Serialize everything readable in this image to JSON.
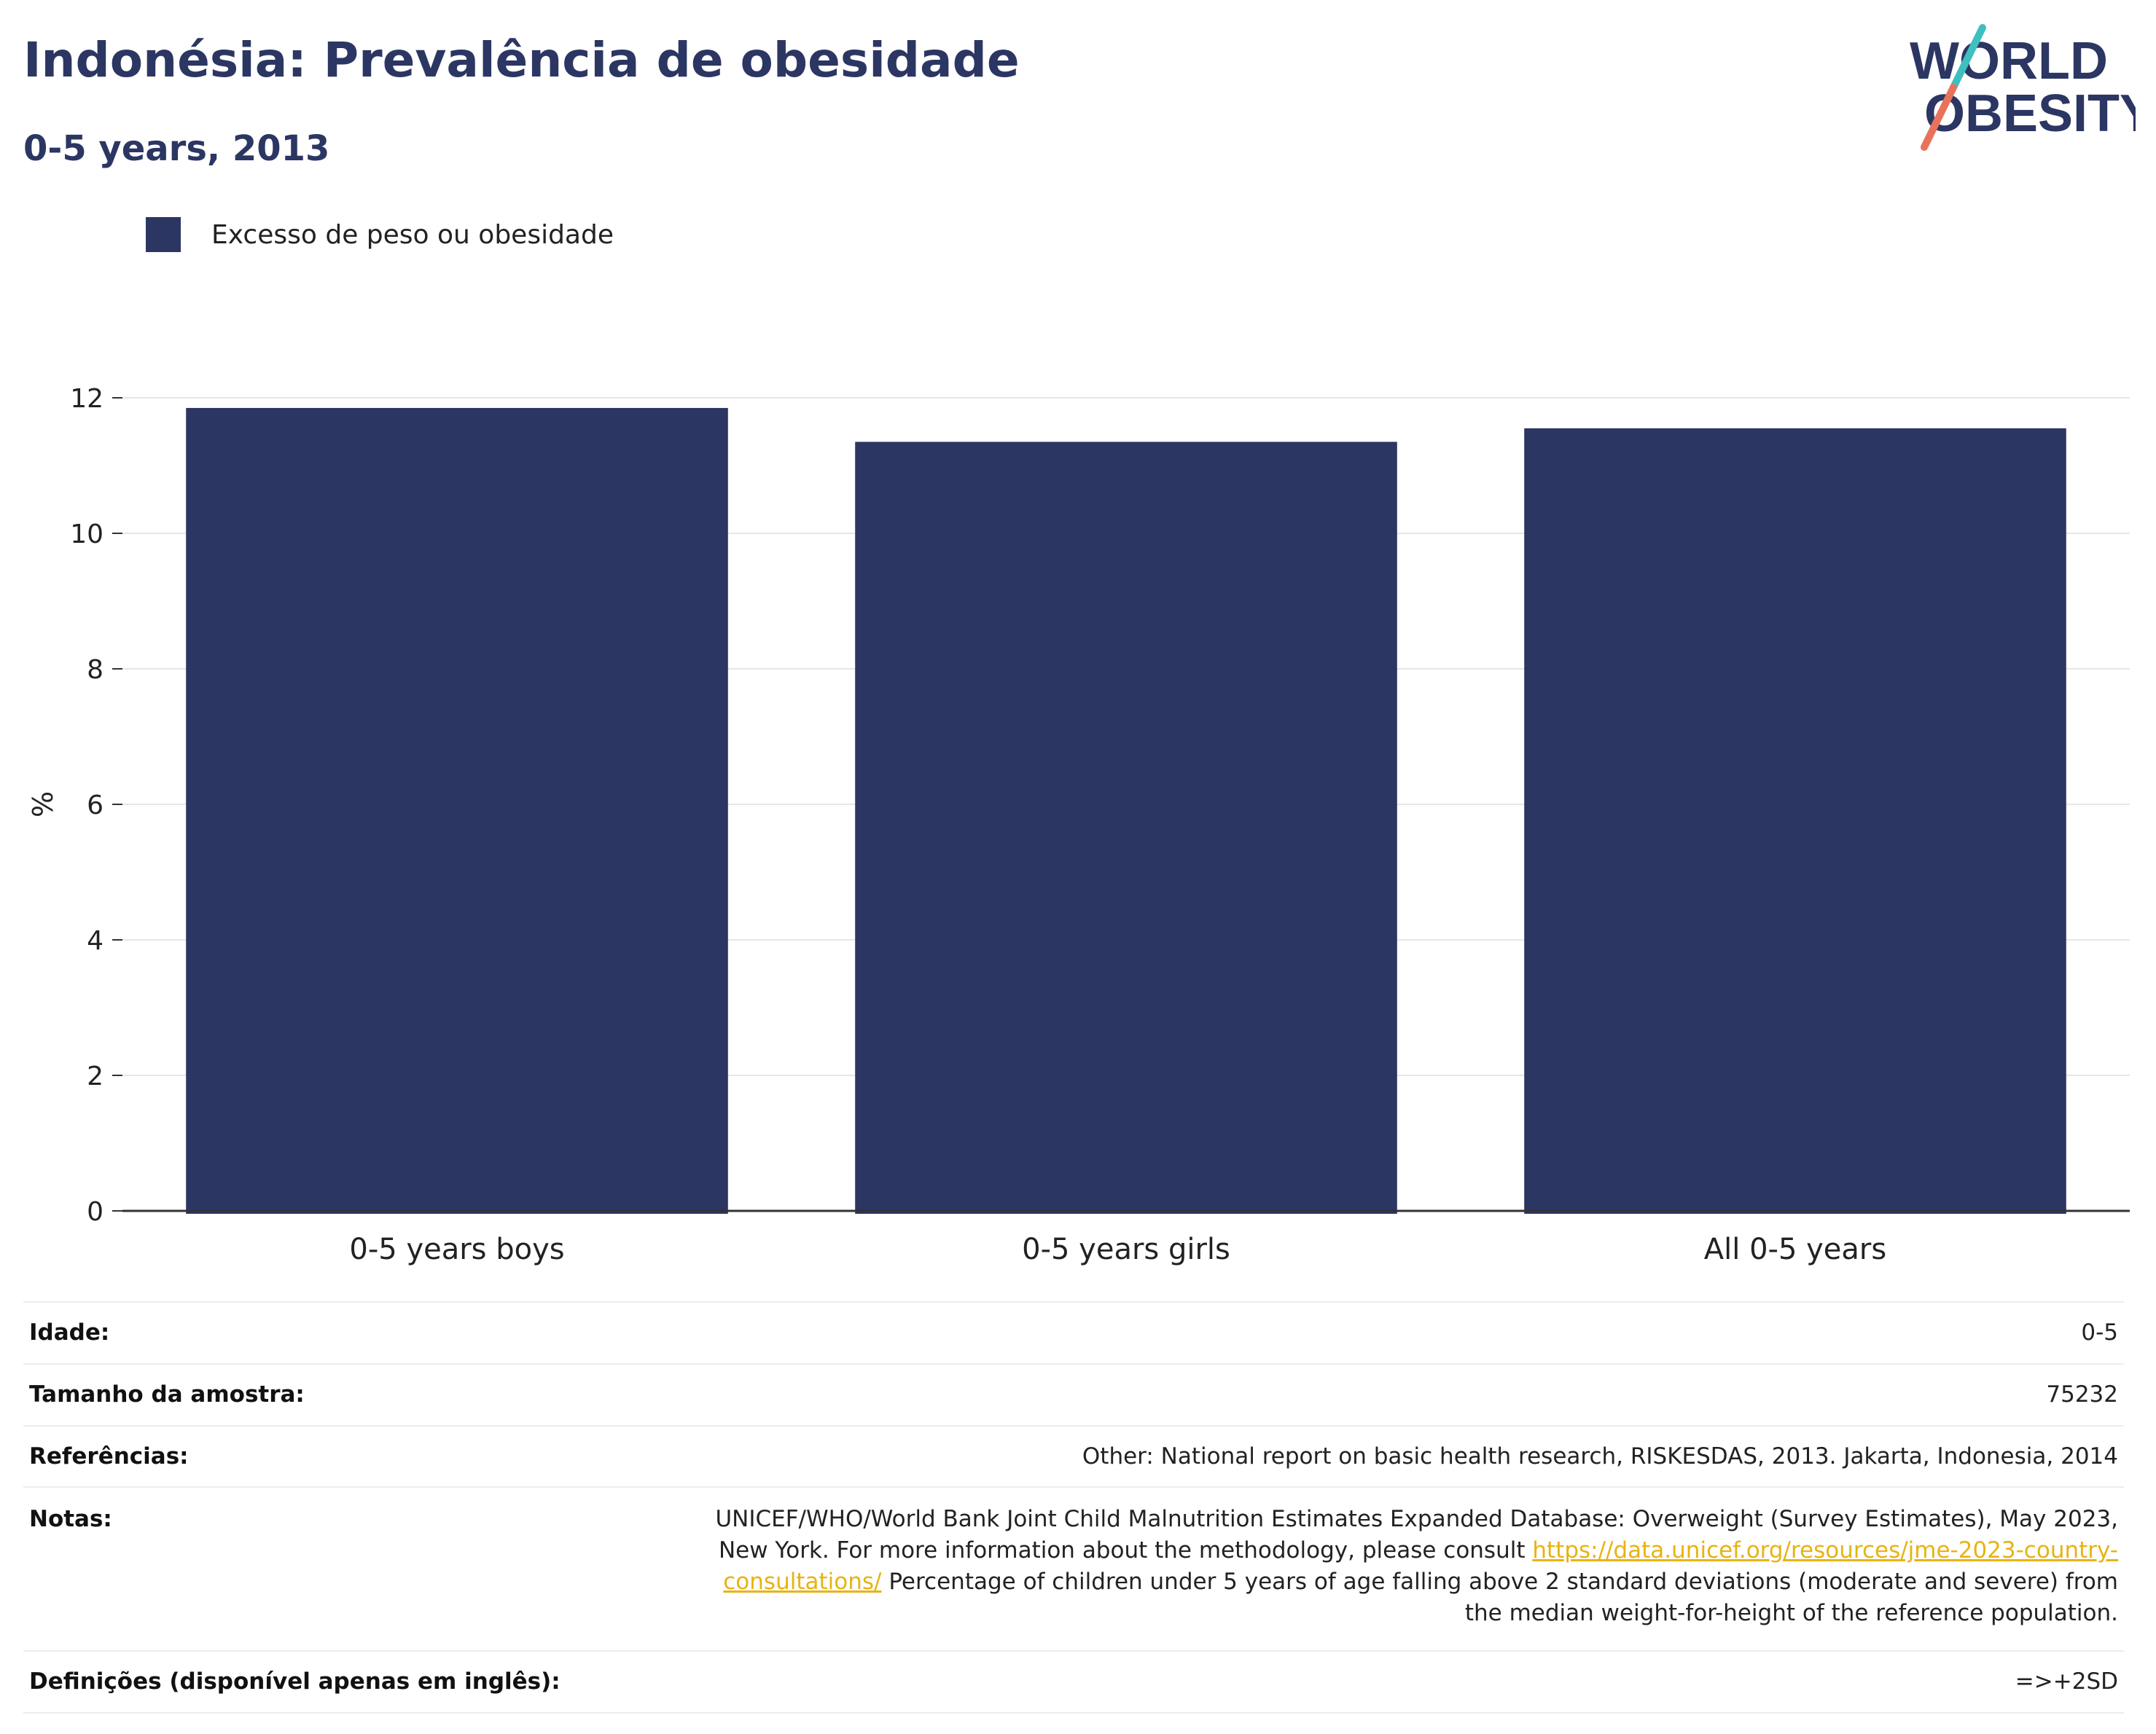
{
  "header": {
    "title": "Indonésia: Prevalência de obesidade",
    "subtitle": "0-5 years, 2013"
  },
  "logo": {
    "line1": "WORLD",
    "line2": "OBESITY",
    "colors": {
      "text": "#2b3663",
      "slash_teal": "#3fbfbf",
      "slash_coral": "#e8735a"
    }
  },
  "legend": {
    "items": [
      {
        "label": "Excesso de peso ou obesidade",
        "color": "#2b3663"
      }
    ]
  },
  "chart_data": {
    "type": "bar",
    "categories": [
      "0-5 years boys",
      "0-5 years girls",
      "All 0-5 years"
    ],
    "series": [
      {
        "name": "Excesso de peso ou obesidade",
        "values": [
          11.85,
          11.35,
          11.55
        ],
        "color": "#2b3663"
      }
    ],
    "ylabel": "%",
    "ylim": [
      0,
      12
    ],
    "yticks": [
      0,
      2,
      4,
      6,
      8,
      10,
      12
    ],
    "grid": true,
    "legend_position": "top-left"
  },
  "info": {
    "age": {
      "label": "Idade:",
      "value": "0-5"
    },
    "sample": {
      "label": "Tamanho da amostra:",
      "value": "75232"
    },
    "refs": {
      "label": "Referências:",
      "value": "Other: National report on basic health research, RISKESDAS, 2013. Jakarta, Indonesia, 2014"
    },
    "notes": {
      "label": "Notas:",
      "text1": "UNICEF/WHO/World Bank Joint Child Malnutrition Estimates Expanded Database: Overweight (Survey Estimates), May 2023, New York. For more information about the methodology, please consult",
      "link": "https://data.unicef.org/resources/jme-2023-country-consultations/",
      "text2": "Percentage of children under 5 years of age falling above 2 standard deviations (moderate and severe) from the median weight-for-height of the reference population."
    },
    "defs": {
      "label": "Definições (disponível apenas em inglês):",
      "value": "=>+2SD"
    }
  }
}
